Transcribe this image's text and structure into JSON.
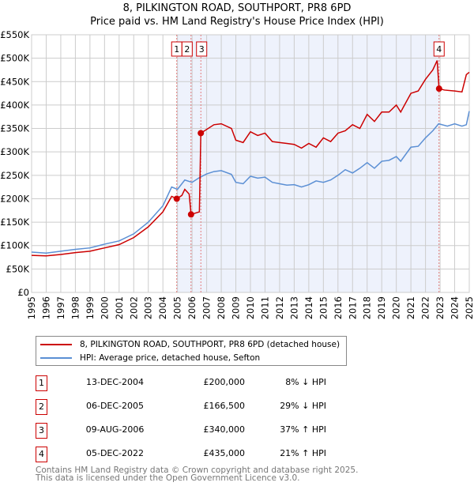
{
  "title": "8, PILKINGTON ROAD, SOUTHPORT, PR8 6PD",
  "subtitle": "Price paid vs. HM Land Registry's House Price Index (HPI)",
  "colors": {
    "property": "#cc0000",
    "hpi": "#5b8fd4",
    "shade": "#eef2fc"
  },
  "chart_data": {
    "type": "line",
    "title": "8, PILKINGTON ROAD, SOUTHPORT, PR8 6PD",
    "ylabel": "",
    "xlabel": "",
    "xlim": [
      1995,
      2025
    ],
    "ylim": [
      0,
      550000
    ],
    "yticks": [
      "£0",
      "£50K",
      "£100K",
      "£150K",
      "£200K",
      "£250K",
      "£300K",
      "£350K",
      "£400K",
      "£450K",
      "£500K",
      "£550K"
    ],
    "xticks": [
      "1995",
      "1996",
      "1997",
      "1998",
      "1999",
      "2000",
      "2001",
      "2002",
      "2003",
      "2004",
      "2005",
      "2006",
      "2007",
      "2008",
      "2009",
      "2010",
      "2011",
      "2012",
      "2013",
      "2014",
      "2015",
      "2016",
      "2017",
      "2018",
      "2019",
      "2020",
      "2021",
      "2022",
      "2023",
      "2024",
      "2025"
    ],
    "grid": true,
    "shaded_range": [
      2004.95,
      2022.93
    ],
    "series": [
      {
        "name": "8, PILKINGTON ROAD, SOUTHPORT, PR8 6PD (detached house)",
        "points": [
          [
            1995,
            79
          ],
          [
            1996,
            78
          ],
          [
            1997,
            81
          ],
          [
            1998,
            85
          ],
          [
            1999,
            88
          ],
          [
            2000,
            95
          ],
          [
            2001,
            102
          ],
          [
            2002,
            117
          ],
          [
            2003,
            140
          ],
          [
            2004,
            172
          ],
          [
            2004.6,
            205
          ],
          [
            2004.95,
            200
          ],
          [
            2005.3,
            207
          ],
          [
            2005.5,
            220
          ],
          [
            2005.8,
            210
          ],
          [
            2005.93,
            166.5
          ],
          [
            2006.5,
            172
          ],
          [
            2006.6,
            340
          ],
          [
            2007,
            348
          ],
          [
            2007.5,
            358
          ],
          [
            2008,
            360
          ],
          [
            2008.7,
            350
          ],
          [
            2009,
            325
          ],
          [
            2009.5,
            320
          ],
          [
            2010,
            343
          ],
          [
            2010.5,
            335
          ],
          [
            2011,
            340
          ],
          [
            2011.5,
            322
          ],
          [
            2012,
            320
          ],
          [
            2012.5,
            318
          ],
          [
            2013,
            316
          ],
          [
            2013.5,
            308
          ],
          [
            2014,
            318
          ],
          [
            2014.5,
            310
          ],
          [
            2015,
            330
          ],
          [
            2015.5,
            322
          ],
          [
            2016,
            340
          ],
          [
            2016.5,
            345
          ],
          [
            2017,
            358
          ],
          [
            2017.5,
            350
          ],
          [
            2018,
            380
          ],
          [
            2018.5,
            365
          ],
          [
            2019,
            385
          ],
          [
            2019.5,
            385
          ],
          [
            2020,
            400
          ],
          [
            2020.3,
            385
          ],
          [
            2021,
            425
          ],
          [
            2021.5,
            430
          ],
          [
            2022,
            455
          ],
          [
            2022.5,
            475
          ],
          [
            2022.8,
            495
          ],
          [
            2022.93,
            435
          ],
          [
            2023.3,
            432
          ],
          [
            2024,
            430
          ],
          [
            2024.5,
            428
          ],
          [
            2024.8,
            465
          ],
          [
            2025,
            470
          ]
        ]
      },
      {
        "name": "HPI: Average price, detached house, Sefton",
        "points": [
          [
            1995,
            86
          ],
          [
            1996,
            84
          ],
          [
            1997,
            88
          ],
          [
            1998,
            92
          ],
          [
            1999,
            95
          ],
          [
            2000,
            103
          ],
          [
            2001,
            110
          ],
          [
            2002,
            125
          ],
          [
            2003,
            150
          ],
          [
            2004,
            185
          ],
          [
            2004.6,
            225
          ],
          [
            2005,
            220
          ],
          [
            2005.5,
            240
          ],
          [
            2006,
            235
          ],
          [
            2006.5,
            245
          ],
          [
            2007,
            253
          ],
          [
            2007.5,
            258
          ],
          [
            2008,
            260
          ],
          [
            2008.7,
            252
          ],
          [
            2009,
            235
          ],
          [
            2009.5,
            232
          ],
          [
            2010,
            248
          ],
          [
            2010.5,
            244
          ],
          [
            2011,
            246
          ],
          [
            2011.5,
            235
          ],
          [
            2012,
            232
          ],
          [
            2012.5,
            229
          ],
          [
            2013,
            230
          ],
          [
            2013.5,
            225
          ],
          [
            2014,
            230
          ],
          [
            2014.5,
            238
          ],
          [
            2015,
            235
          ],
          [
            2015.5,
            240
          ],
          [
            2016,
            250
          ],
          [
            2016.5,
            262
          ],
          [
            2017,
            255
          ],
          [
            2017.5,
            265
          ],
          [
            2018,
            277
          ],
          [
            2018.5,
            265
          ],
          [
            2019,
            280
          ],
          [
            2019.5,
            282
          ],
          [
            2020,
            290
          ],
          [
            2020.3,
            280
          ],
          [
            2021,
            310
          ],
          [
            2021.5,
            312
          ],
          [
            2022,
            330
          ],
          [
            2022.5,
            345
          ],
          [
            2022.9,
            360
          ],
          [
            2023.5,
            355
          ],
          [
            2024,
            360
          ],
          [
            2024.5,
            355
          ],
          [
            2024.8,
            358
          ],
          [
            2025,
            387
          ]
        ]
      }
    ],
    "sales": [
      {
        "label": "1",
        "x": 2004.95,
        "value": 200000,
        "date": "13-DEC-2004",
        "price": "£200,000",
        "hpi": "8% ↓ HPI"
      },
      {
        "label": "2",
        "x": 2005.93,
        "value": 166500,
        "date": "06-DEC-2005",
        "price": "£166,500",
        "hpi": "29% ↓ HPI"
      },
      {
        "label": "3",
        "x": 2006.6,
        "value": 340000,
        "date": "09-AUG-2006",
        "price": "£340,000",
        "hpi": "37% ↑ HPI"
      },
      {
        "label": "4",
        "x": 2022.93,
        "value": 435000,
        "date": "05-DEC-2022",
        "price": "£435,000",
        "hpi": "21% ↑ HPI"
      }
    ]
  },
  "legend": {
    "property": "8, PILKINGTON ROAD, SOUTHPORT, PR8 6PD (detached house)",
    "hpi": "HPI: Average price, detached house, Sefton"
  },
  "footer": {
    "line1": "Contains HM Land Registry data © Crown copyright and database right 2025.",
    "line2": "This data is licensed under the Open Government Licence v3.0."
  }
}
